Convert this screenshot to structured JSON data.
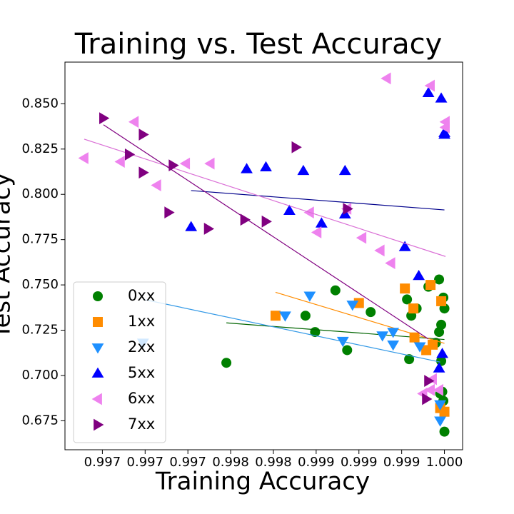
{
  "chart_data": {
    "type": "scatter",
    "title": "Training vs. Test Accuracy",
    "xlabel": "Training Accuracy",
    "ylabel": "Test Accuracy",
    "xlim": [
      0.9962,
      0.99992
    ],
    "ylim": [
      0.659,
      0.873
    ],
    "xticks": [
      {
        "value": 0.99655,
        "label": "0.997"
      },
      {
        "value": 0.99695,
        "label": "0.997"
      },
      {
        "value": 0.99735,
        "label": "0.997"
      },
      {
        "value": 0.99775,
        "label": "0.998"
      },
      {
        "value": 0.99815,
        "label": "0.998"
      },
      {
        "value": 0.99855,
        "label": "0.999"
      },
      {
        "value": 0.99895,
        "label": "0.999"
      },
      {
        "value": 0.99935,
        "label": "0.999"
      },
      {
        "value": 0.99975,
        "label": "1.000"
      }
    ],
    "yticks": [
      0.675,
      {
        "value": 0.7,
        "label": "0.700"
      },
      0.725,
      {
        "value": 0.75,
        "label": "0.750"
      },
      0.775,
      {
        "value": 0.8,
        "label": "0.800"
      },
      0.825,
      {
        "value": 0.85,
        "label": "0.850"
      }
    ],
    "legend": "lower left",
    "fit_lines": true,
    "series": [
      {
        "name": "0xx",
        "color": "#008000",
        "fit_color": "#006400",
        "marker": "circle",
        "x": [
          0.99771,
          0.99845,
          0.99854,
          0.99873,
          0.99884,
          0.99906,
          0.9994,
          0.99942,
          0.99944,
          0.99949,
          0.9996,
          0.99967,
          0.9997,
          0.9997,
          0.99971,
          0.99972,
          0.99972,
          0.99973,
          0.99974,
          0.99974,
          0.99975,
          0.99975
        ],
        "values": [
          0.707,
          0.733,
          0.724,
          0.747,
          0.714,
          0.735,
          0.742,
          0.709,
          0.733,
          0.737,
          0.749,
          0.718,
          0.753,
          0.724,
          0.69,
          0.728,
          0.708,
          0.691,
          0.743,
          0.686,
          0.737,
          0.669
        ]
      },
      {
        "name": "1xx",
        "color": "#ff8c00",
        "fit_color": "#ff8c00",
        "marker": "square",
        "x": [
          0.99817,
          0.99895,
          0.99938,
          0.99946,
          0.99947,
          0.99958,
          0.99962,
          0.99964,
          0.99971,
          0.99972,
          0.99975
        ],
        "values": [
          0.733,
          0.74,
          0.748,
          0.737,
          0.721,
          0.714,
          0.75,
          0.717,
          0.682,
          0.741,
          0.68
        ]
      },
      {
        "name": "2xx",
        "color": "#1e90ff",
        "fit_color": "#3399e6",
        "marker": "triangle-down",
        "x": [
          0.99693,
          0.99826,
          0.99849,
          0.9988,
          0.99889,
          0.99917,
          0.99927,
          0.99927,
          0.99952,
          0.99971,
          0.99971
        ],
        "values": [
          0.718,
          0.733,
          0.744,
          0.719,
          0.739,
          0.722,
          0.717,
          0.724,
          0.716,
          0.684,
          0.675
        ]
      },
      {
        "name": "5xx",
        "color": "#0000ff",
        "fit_color": "#00008b",
        "marker": "triangle-up",
        "x": [
          0.99738,
          0.9979,
          0.99808,
          0.9983,
          0.99843,
          0.9986,
          0.99882,
          0.99882,
          0.99938,
          0.99951,
          0.9996,
          0.9997,
          0.99972,
          0.99973,
          0.99975,
          0.99975
        ],
        "values": [
          0.782,
          0.814,
          0.815,
          0.791,
          0.813,
          0.784,
          0.813,
          0.789,
          0.771,
          0.755,
          0.856,
          0.704,
          0.853,
          0.712,
          0.833,
          0.834
        ]
      },
      {
        "name": "6xx",
        "color": "#ee82ee",
        "fit_color": "#da70d6",
        "marker": "triangle-left",
        "x": [
          0.99638,
          0.99672,
          0.99685,
          0.99706,
          0.99733,
          0.99756,
          0.99849,
          0.99856,
          0.99884,
          0.99898,
          0.99915,
          0.99925,
          0.99921,
          0.99962,
          0.99955,
          0.99964,
          0.99962,
          0.9997,
          0.99976,
          0.99976
        ],
        "values": [
          0.82,
          0.818,
          0.84,
          0.805,
          0.817,
          0.817,
          0.79,
          0.779,
          0.792,
          0.776,
          0.769,
          0.762,
          0.864,
          0.86,
          0.69,
          0.698,
          0.692,
          0.692,
          0.84,
          0.837
        ]
      },
      {
        "name": "7xx",
        "color": "#800080",
        "fit_color": "#800080",
        "marker": "triangle-right",
        "x": [
          0.99656,
          0.9968,
          0.99693,
          0.99693,
          0.99717,
          0.99721,
          0.99754,
          0.99788,
          0.99808,
          0.99836,
          0.99884,
          0.9996,
          0.99958
        ],
        "values": [
          0.842,
          0.822,
          0.833,
          0.812,
          0.79,
          0.816,
          0.781,
          0.786,
          0.785,
          0.826,
          0.792,
          0.697,
          0.687
        ]
      }
    ]
  }
}
